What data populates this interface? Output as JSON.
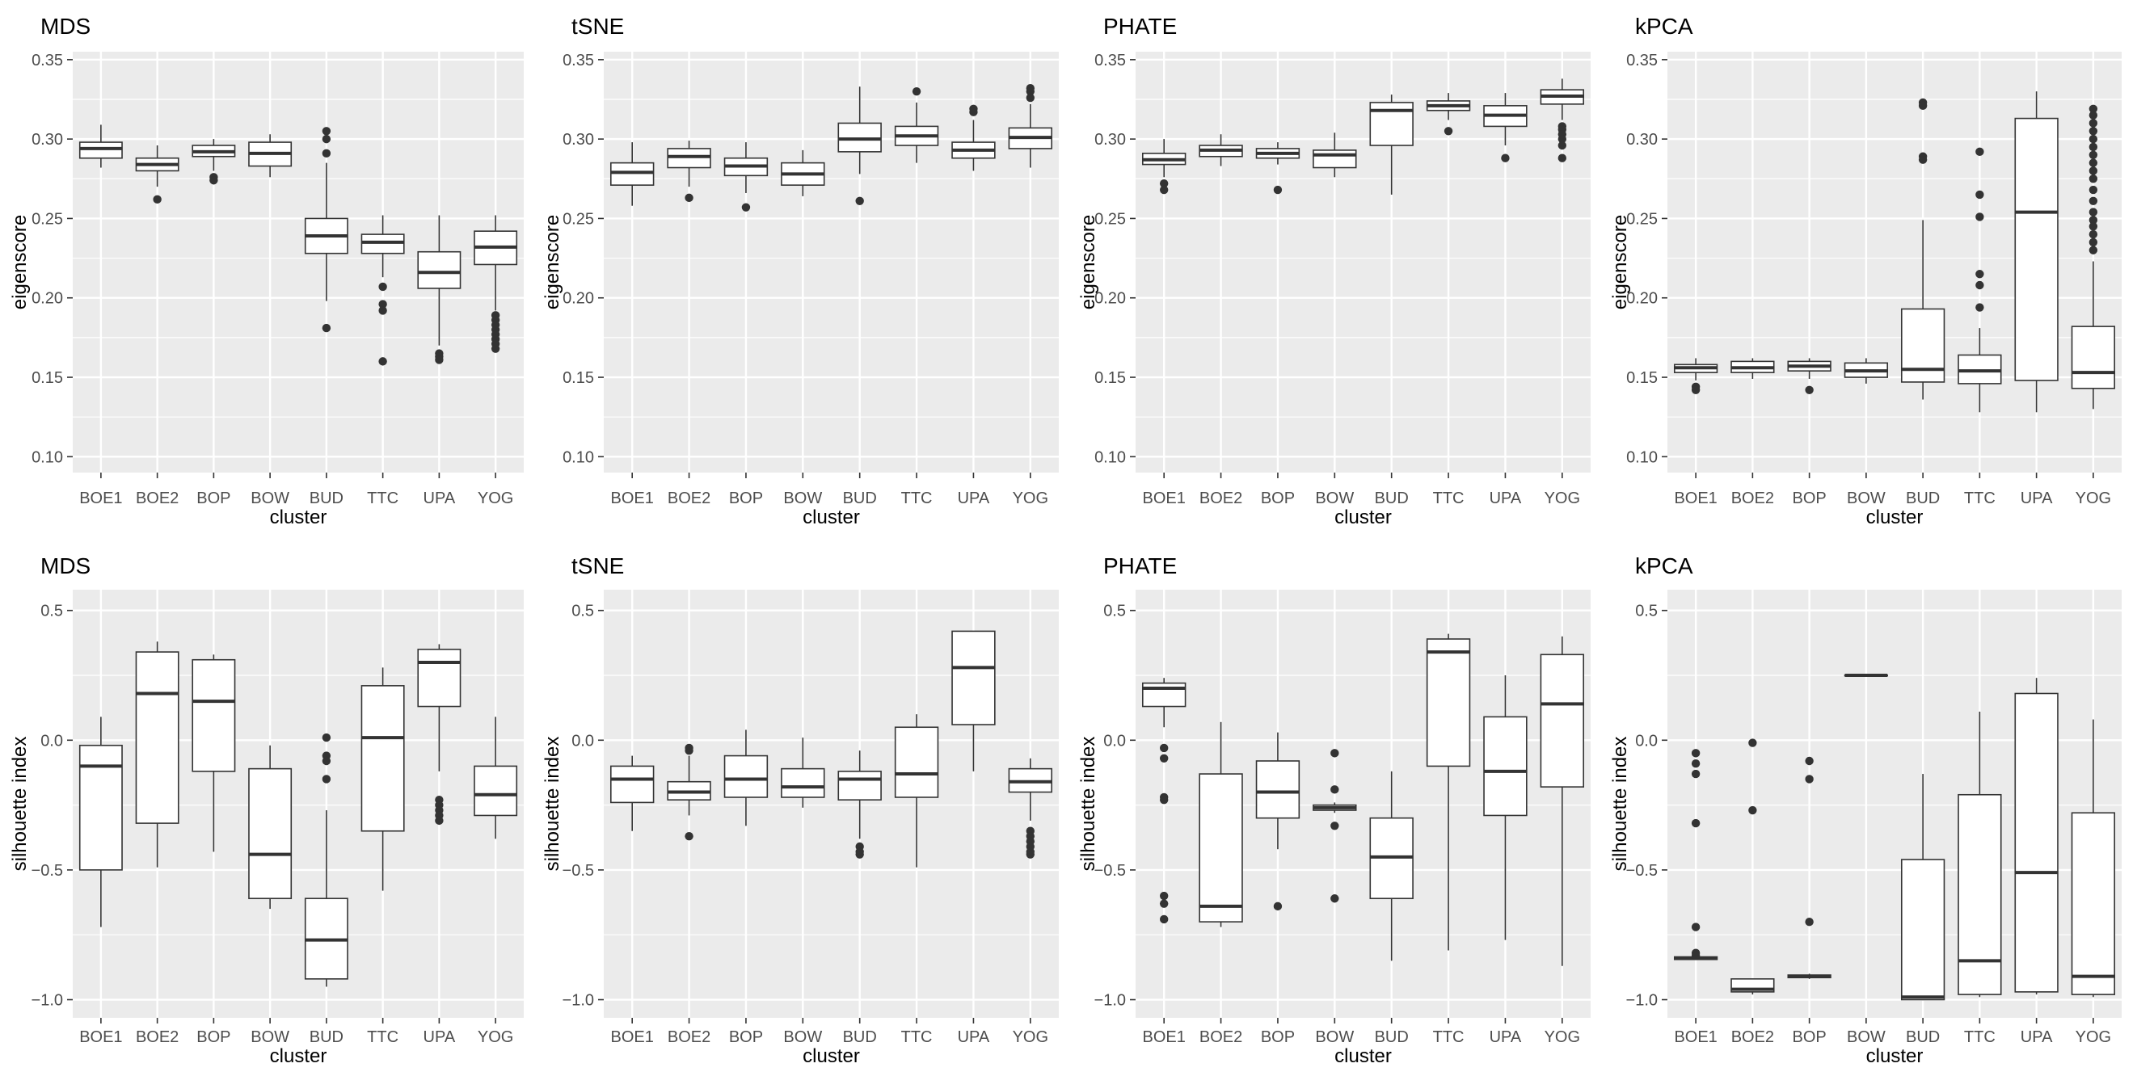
{
  "figure": {
    "xlabel": "cluster",
    "categories": [
      "BOE1",
      "BOE2",
      "BOP",
      "BOW",
      "BUD",
      "TTC",
      "UPA",
      "YOG"
    ],
    "colors": {
      "panel_bg": "#ebebeb",
      "grid": "#ffffff",
      "box_stroke": "#333333",
      "box_fill": "#ffffff",
      "text": "#4d4d4d",
      "title": "#000000"
    }
  },
  "chart_data": [
    {
      "type": "box",
      "title": "MDS",
      "ylabel": "eigenscore",
      "xlabel": "cluster",
      "ylim": [
        0.09,
        0.355
      ],
      "yticks": [
        0.1,
        0.15,
        0.2,
        0.25,
        0.3,
        0.35
      ],
      "ytick_labels": [
        "0.10",
        "0.15",
        "0.20",
        "0.25",
        "0.30",
        "0.35"
      ],
      "categories": [
        "BOE1",
        "BOE2",
        "BOP",
        "BOW",
        "BUD",
        "TTC",
        "UPA",
        "YOG"
      ],
      "boxes": [
        {
          "lower": 0.282,
          "q1": 0.288,
          "median": 0.294,
          "q3": 0.298,
          "upper": 0.309,
          "outliers": []
        },
        {
          "lower": 0.27,
          "q1": 0.28,
          "median": 0.284,
          "q3": 0.288,
          "upper": 0.296,
          "outliers": [
            0.262
          ]
        },
        {
          "lower": 0.28,
          "q1": 0.289,
          "median": 0.292,
          "q3": 0.296,
          "upper": 0.3,
          "outliers": [
            0.276,
            0.274
          ]
        },
        {
          "lower": 0.276,
          "q1": 0.283,
          "median": 0.291,
          "q3": 0.298,
          "upper": 0.303,
          "outliers": []
        },
        {
          "lower": 0.198,
          "q1": 0.228,
          "median": 0.239,
          "q3": 0.25,
          "upper": 0.285,
          "outliers": [
            0.305,
            0.3,
            0.291,
            0.181
          ]
        },
        {
          "lower": 0.213,
          "q1": 0.228,
          "median": 0.235,
          "q3": 0.24,
          "upper": 0.252,
          "outliers": [
            0.207,
            0.196,
            0.192,
            0.16
          ]
        },
        {
          "lower": 0.17,
          "q1": 0.206,
          "median": 0.216,
          "q3": 0.229,
          "upper": 0.252,
          "outliers": [
            0.165,
            0.163,
            0.161
          ]
        },
        {
          "lower": 0.192,
          "q1": 0.221,
          "median": 0.232,
          "q3": 0.242,
          "upper": 0.252,
          "outliers": [
            0.189,
            0.186,
            0.183,
            0.18,
            0.177,
            0.174,
            0.171,
            0.168
          ]
        }
      ]
    },
    {
      "type": "box",
      "title": "tSNE",
      "ylabel": "eigenscore",
      "xlabel": "cluster",
      "ylim": [
        0.09,
        0.355
      ],
      "yticks": [
        0.1,
        0.15,
        0.2,
        0.25,
        0.3,
        0.35
      ],
      "ytick_labels": [
        "0.10",
        "0.15",
        "0.20",
        "0.25",
        "0.30",
        "0.35"
      ],
      "categories": [
        "BOE1",
        "BOE2",
        "BOP",
        "BOW",
        "BUD",
        "TTC",
        "UPA",
        "YOG"
      ],
      "boxes": [
        {
          "lower": 0.258,
          "q1": 0.271,
          "median": 0.279,
          "q3": 0.285,
          "upper": 0.298,
          "outliers": []
        },
        {
          "lower": 0.27,
          "q1": 0.282,
          "median": 0.289,
          "q3": 0.294,
          "upper": 0.299,
          "outliers": [
            0.263
          ]
        },
        {
          "lower": 0.266,
          "q1": 0.277,
          "median": 0.283,
          "q3": 0.288,
          "upper": 0.298,
          "outliers": [
            0.257
          ]
        },
        {
          "lower": 0.264,
          "q1": 0.271,
          "median": 0.278,
          "q3": 0.285,
          "upper": 0.293,
          "outliers": []
        },
        {
          "lower": 0.278,
          "q1": 0.292,
          "median": 0.3,
          "q3": 0.31,
          "upper": 0.333,
          "outliers": [
            0.261
          ]
        },
        {
          "lower": 0.285,
          "q1": 0.296,
          "median": 0.302,
          "q3": 0.308,
          "upper": 0.323,
          "outliers": [
            0.33
          ]
        },
        {
          "lower": 0.28,
          "q1": 0.288,
          "median": 0.293,
          "q3": 0.298,
          "upper": 0.312,
          "outliers": [
            0.319,
            0.317
          ]
        },
        {
          "lower": 0.282,
          "q1": 0.294,
          "median": 0.301,
          "q3": 0.307,
          "upper": 0.322,
          "outliers": [
            0.332,
            0.33,
            0.326
          ]
        }
      ]
    },
    {
      "type": "box",
      "title": "PHATE",
      "ylabel": "eigenscore",
      "xlabel": "cluster",
      "ylim": [
        0.09,
        0.355
      ],
      "yticks": [
        0.1,
        0.15,
        0.2,
        0.25,
        0.3,
        0.35
      ],
      "ytick_labels": [
        "0.10",
        "0.15",
        "0.20",
        "0.25",
        "0.30",
        "0.35"
      ],
      "categories": [
        "BOE1",
        "BOE2",
        "BOP",
        "BOW",
        "BUD",
        "TTC",
        "UPA",
        "YOG"
      ],
      "boxes": [
        {
          "lower": 0.276,
          "q1": 0.284,
          "median": 0.287,
          "q3": 0.291,
          "upper": 0.3,
          "outliers": [
            0.272,
            0.268
          ]
        },
        {
          "lower": 0.283,
          "q1": 0.289,
          "median": 0.293,
          "q3": 0.296,
          "upper": 0.303,
          "outliers": []
        },
        {
          "lower": 0.284,
          "q1": 0.288,
          "median": 0.291,
          "q3": 0.294,
          "upper": 0.298,
          "outliers": [
            0.268
          ]
        },
        {
          "lower": 0.276,
          "q1": 0.282,
          "median": 0.29,
          "q3": 0.293,
          "upper": 0.304,
          "outliers": []
        },
        {
          "lower": 0.265,
          "q1": 0.296,
          "median": 0.318,
          "q3": 0.323,
          "upper": 0.328,
          "outliers": []
        },
        {
          "lower": 0.312,
          "q1": 0.318,
          "median": 0.321,
          "q3": 0.324,
          "upper": 0.329,
          "outliers": [
            0.305
          ]
        },
        {
          "lower": 0.296,
          "q1": 0.308,
          "median": 0.315,
          "q3": 0.321,
          "upper": 0.329,
          "outliers": [
            0.288
          ]
        },
        {
          "lower": 0.312,
          "q1": 0.322,
          "median": 0.327,
          "q3": 0.331,
          "upper": 0.338,
          "outliers": [
            0.308,
            0.306,
            0.303,
            0.3,
            0.296,
            0.288
          ]
        }
      ]
    },
    {
      "type": "box",
      "title": "kPCA",
      "ylabel": "eigenscore",
      "xlabel": "cluster",
      "ylim": [
        0.09,
        0.355
      ],
      "yticks": [
        0.1,
        0.15,
        0.2,
        0.25,
        0.3,
        0.35
      ],
      "ytick_labels": [
        "0.10",
        "0.15",
        "0.20",
        "0.25",
        "0.30",
        "0.35"
      ],
      "categories": [
        "BOE1",
        "BOE2",
        "BOP",
        "BOW",
        "BUD",
        "TTC",
        "UPA",
        "YOG"
      ],
      "boxes": [
        {
          "lower": 0.148,
          "q1": 0.153,
          "median": 0.156,
          "q3": 0.158,
          "upper": 0.162,
          "outliers": [
            0.144,
            0.142
          ]
        },
        {
          "lower": 0.149,
          "q1": 0.153,
          "median": 0.156,
          "q3": 0.16,
          "upper": 0.162,
          "outliers": []
        },
        {
          "lower": 0.149,
          "q1": 0.154,
          "median": 0.157,
          "q3": 0.16,
          "upper": 0.162,
          "outliers": [
            0.142
          ]
        },
        {
          "lower": 0.146,
          "q1": 0.15,
          "median": 0.154,
          "q3": 0.159,
          "upper": 0.162,
          "outliers": []
        },
        {
          "lower": 0.136,
          "q1": 0.147,
          "median": 0.155,
          "q3": 0.193,
          "upper": 0.249,
          "outliers": [
            0.323,
            0.321,
            0.289,
            0.287
          ]
        },
        {
          "lower": 0.128,
          "q1": 0.146,
          "median": 0.154,
          "q3": 0.164,
          "upper": 0.181,
          "outliers": [
            0.292,
            0.265,
            0.251,
            0.215,
            0.208,
            0.194
          ]
        },
        {
          "lower": 0.128,
          "q1": 0.148,
          "median": 0.254,
          "q3": 0.313,
          "upper": 0.33,
          "outliers": []
        },
        {
          "lower": 0.13,
          "q1": 0.143,
          "median": 0.153,
          "q3": 0.182,
          "upper": 0.223,
          "outliers": [
            0.319,
            0.315,
            0.31,
            0.305,
            0.3,
            0.295,
            0.29,
            0.285,
            0.28,
            0.275,
            0.268,
            0.261,
            0.254,
            0.249,
            0.245,
            0.24,
            0.235,
            0.23
          ]
        }
      ]
    },
    {
      "type": "box",
      "title": "MDS",
      "ylabel": "silhouette index",
      "xlabel": "cluster",
      "ylim": [
        -1.07,
        0.58
      ],
      "yticks": [
        -1.0,
        -0.5,
        0.0,
        0.5
      ],
      "ytick_labels": [
        "−1.0",
        "−0.5",
        "0.0",
        "0.5"
      ],
      "categories": [
        "BOE1",
        "BOE2",
        "BOP",
        "BOW",
        "BUD",
        "TTC",
        "UPA",
        "YOG"
      ],
      "boxes": [
        {
          "lower": -0.72,
          "q1": -0.5,
          "median": -0.1,
          "q3": -0.02,
          "upper": 0.09,
          "outliers": []
        },
        {
          "lower": -0.49,
          "q1": -0.32,
          "median": 0.18,
          "q3": 0.34,
          "upper": 0.38,
          "outliers": []
        },
        {
          "lower": -0.43,
          "q1": -0.12,
          "median": 0.15,
          "q3": 0.31,
          "upper": 0.33,
          "outliers": []
        },
        {
          "lower": -0.65,
          "q1": -0.61,
          "median": -0.44,
          "q3": -0.11,
          "upper": -0.02,
          "outliers": []
        },
        {
          "lower": -0.95,
          "q1": -0.92,
          "median": -0.77,
          "q3": -0.61,
          "upper": -0.27,
          "outliers": [
            0.01,
            -0.06,
            -0.08,
            -0.15
          ]
        },
        {
          "lower": -0.58,
          "q1": -0.35,
          "median": 0.01,
          "q3": 0.21,
          "upper": 0.28,
          "outliers": []
        },
        {
          "lower": -0.12,
          "q1": 0.13,
          "median": 0.3,
          "q3": 0.35,
          "upper": 0.37,
          "outliers": [
            -0.23,
            -0.25,
            -0.27,
            -0.29,
            -0.31
          ]
        },
        {
          "lower": -0.38,
          "q1": -0.29,
          "median": -0.21,
          "q3": -0.1,
          "upper": 0.09,
          "outliers": []
        }
      ]
    },
    {
      "type": "box",
      "title": "tSNE",
      "ylabel": "silhouette index",
      "xlabel": "cluster",
      "ylim": [
        -1.07,
        0.58
      ],
      "yticks": [
        -1.0,
        -0.5,
        0.0,
        0.5
      ],
      "ytick_labels": [
        "−1.0",
        "−0.5",
        "0.0",
        "0.5"
      ],
      "categories": [
        "BOE1",
        "BOE2",
        "BOP",
        "BOW",
        "BUD",
        "TTC",
        "UPA",
        "YOG"
      ],
      "boxes": [
        {
          "lower": -0.35,
          "q1": -0.24,
          "median": -0.15,
          "q3": -0.1,
          "upper": -0.06,
          "outliers": []
        },
        {
          "lower": -0.29,
          "q1": -0.23,
          "median": -0.2,
          "q3": -0.16,
          "upper": -0.06,
          "outliers": [
            -0.03,
            -0.04,
            -0.37
          ]
        },
        {
          "lower": -0.33,
          "q1": -0.22,
          "median": -0.15,
          "q3": -0.06,
          "upper": 0.04,
          "outliers": []
        },
        {
          "lower": -0.26,
          "q1": -0.22,
          "median": -0.18,
          "q3": -0.11,
          "upper": 0.01,
          "outliers": []
        },
        {
          "lower": -0.38,
          "q1": -0.23,
          "median": -0.15,
          "q3": -0.12,
          "upper": -0.04,
          "outliers": [
            -0.41,
            -0.43,
            -0.44
          ]
        },
        {
          "lower": -0.49,
          "q1": -0.22,
          "median": -0.13,
          "q3": 0.05,
          "upper": 0.1,
          "outliers": []
        },
        {
          "lower": -0.12,
          "q1": 0.06,
          "median": 0.28,
          "q3": 0.42,
          "upper": 0.42,
          "outliers": []
        },
        {
          "lower": -0.31,
          "q1": -0.2,
          "median": -0.16,
          "q3": -0.11,
          "upper": -0.07,
          "outliers": [
            -0.35,
            -0.37,
            -0.39,
            -0.41,
            -0.43,
            -0.44
          ]
        }
      ]
    },
    {
      "type": "box",
      "title": "PHATE",
      "ylabel": "silhouette index",
      "xlabel": "cluster",
      "ylim": [
        -1.07,
        0.58
      ],
      "yticks": [
        -1.0,
        -0.5,
        0.0,
        0.5
      ],
      "ytick_labels": [
        "−1.0",
        "−0.5",
        "0.0",
        "0.5"
      ],
      "categories": [
        "BOE1",
        "BOE2",
        "BOP",
        "BOW",
        "BUD",
        "TTC",
        "UPA",
        "YOG"
      ],
      "boxes": [
        {
          "lower": 0.05,
          "q1": 0.13,
          "median": 0.2,
          "q3": 0.22,
          "upper": 0.24,
          "outliers": [
            -0.03,
            -0.07,
            -0.22,
            -0.23,
            -0.6,
            -0.63,
            -0.69
          ]
        },
        {
          "lower": -0.72,
          "q1": -0.7,
          "median": -0.64,
          "q3": -0.13,
          "upper": 0.07,
          "outliers": []
        },
        {
          "lower": -0.42,
          "q1": -0.3,
          "median": -0.2,
          "q3": -0.08,
          "upper": 0.03,
          "outliers": [
            -0.64
          ]
        },
        {
          "lower": -0.28,
          "q1": -0.27,
          "median": -0.26,
          "q3": -0.25,
          "upper": -0.24,
          "outliers": [
            -0.05,
            -0.19,
            -0.33,
            -0.61
          ]
        },
        {
          "lower": -0.85,
          "q1": -0.61,
          "median": -0.45,
          "q3": -0.3,
          "upper": -0.12,
          "outliers": []
        },
        {
          "lower": -0.81,
          "q1": -0.1,
          "median": 0.34,
          "q3": 0.39,
          "upper": 0.41,
          "outliers": []
        },
        {
          "lower": -0.77,
          "q1": -0.29,
          "median": -0.12,
          "q3": 0.09,
          "upper": 0.25,
          "outliers": []
        },
        {
          "lower": -0.87,
          "q1": -0.18,
          "median": 0.14,
          "q3": 0.33,
          "upper": 0.4,
          "outliers": []
        }
      ]
    },
    {
      "type": "box",
      "title": "kPCA",
      "ylabel": "silhouette index",
      "xlabel": "cluster",
      "ylim": [
        -1.07,
        0.58
      ],
      "yticks": [
        -1.0,
        -0.5,
        0.0,
        0.5
      ],
      "ytick_labels": [
        "−1.0",
        "−0.5",
        "0.0",
        "0.5"
      ],
      "categories": [
        "BOE1",
        "BOE2",
        "BOP",
        "BOW",
        "BUD",
        "TTC",
        "UPA",
        "YOG"
      ],
      "boxes": [
        {
          "lower": -0.84,
          "q1": -0.845,
          "median": -0.84,
          "q3": -0.835,
          "upper": -0.83,
          "outliers": [
            -0.05,
            -0.09,
            -0.13,
            -0.32,
            -0.72,
            -0.82,
            -0.83
          ]
        },
        {
          "lower": -0.98,
          "q1": -0.97,
          "median": -0.96,
          "q3": -0.92,
          "upper": -0.92,
          "outliers": [
            -0.01,
            -0.27
          ]
        },
        {
          "lower": -0.92,
          "q1": -0.915,
          "median": -0.91,
          "q3": -0.905,
          "upper": -0.9,
          "outliers": [
            -0.08,
            -0.15,
            -0.7
          ]
        },
        {
          "lower": 0.25,
          "q1": 0.25,
          "median": 0.25,
          "q3": 0.25,
          "upper": 0.25,
          "outliers": []
        },
        {
          "lower": -1.0,
          "q1": -1.0,
          "median": -0.99,
          "q3": -0.46,
          "upper": -0.13,
          "outliers": []
        },
        {
          "lower": -0.99,
          "q1": -0.98,
          "median": -0.85,
          "q3": -0.21,
          "upper": 0.11,
          "outliers": []
        },
        {
          "lower": -0.98,
          "q1": -0.97,
          "median": -0.51,
          "q3": 0.18,
          "upper": 0.24,
          "outliers": []
        },
        {
          "lower": -0.99,
          "q1": -0.98,
          "median": -0.91,
          "q3": -0.28,
          "upper": 0.08,
          "outliers": []
        }
      ]
    }
  ]
}
